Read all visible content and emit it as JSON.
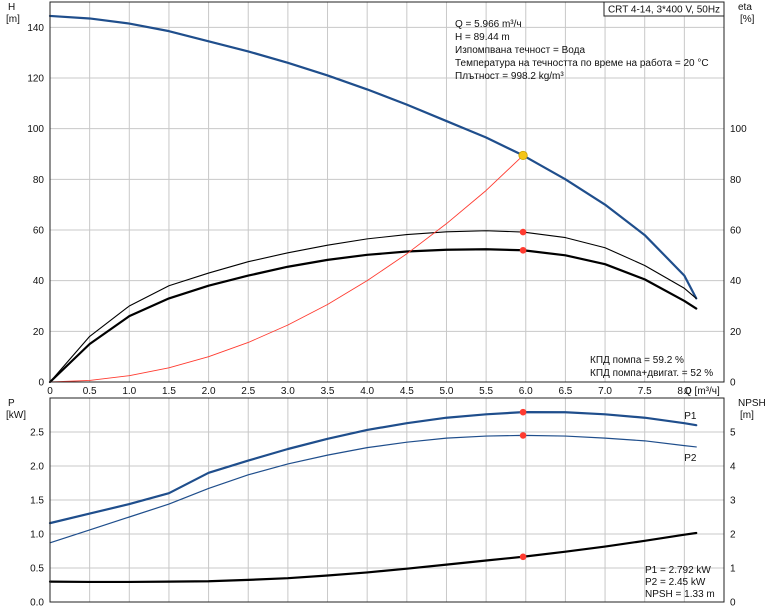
{
  "title": "CRT 4-14, 3*400 V, 50Hz",
  "info": [
    "Q = 5.966 m³/ч",
    "H = 89.44 m",
    "Изпомпвана течност = Вода",
    "Температура на течността по време на работа = 20 °C",
    "Плътност = 998.2 kg/m³"
  ],
  "efficiency_info": [
    "КПД помпа = 59.2 %",
    "КПД помпа+двигат. = 52 %"
  ],
  "power_info": [
    "P1 = 2.792 kW",
    "P2 = 2.45 kW",
    "NPSH = 1.33 m"
  ],
  "colors": {
    "blue": "#1f4e8c",
    "black": "#000000",
    "red": "#ff3b30",
    "duty": "#f5c518",
    "grid": "#c8c8c8"
  },
  "chart_data": [
    {
      "type": "line",
      "panel": "head-efficiency",
      "xlabel": "Q [m³/ч]",
      "xlim": [
        0,
        8.5
      ],
      "x_ticks": [
        "0",
        "0.5",
        "1.0",
        "1.5",
        "2.0",
        "2.5",
        "3.0",
        "3.5",
        "4.0",
        "4.5",
        "5.0",
        "5.5",
        "6.0",
        "6.5",
        "7.0",
        "7.5",
        "8.0"
      ],
      "ylabel_left": [
        "H",
        "[m]"
      ],
      "ylim_left": [
        0,
        150
      ],
      "y_ticks_left": [
        "0",
        "20",
        "40",
        "60",
        "80",
        "100",
        "120",
        "140"
      ],
      "ylabel_right": [
        "eta",
        "[%]"
      ],
      "ylim_right": [
        0,
        150
      ],
      "y_ticks_right": [
        "0",
        "20",
        "40",
        "60",
        "80",
        "100"
      ],
      "grid": true,
      "series": [
        {
          "axis": "left",
          "style": "blue",
          "points": [
            [
              0,
              144.5
            ],
            [
              0.5,
              143.5
            ],
            [
              1,
              141.5
            ],
            [
              1.5,
              138.5
            ],
            [
              2,
              134.5
            ],
            [
              2.5,
              130.5
            ],
            [
              3,
              126
            ],
            [
              3.5,
              121
            ],
            [
              4,
              115.5
            ],
            [
              4.5,
              109.5
            ],
            [
              5,
              103
            ],
            [
              5.5,
              96.5
            ],
            [
              5.966,
              89.44
            ],
            [
              6.5,
              80
            ],
            [
              7,
              70
            ],
            [
              7.5,
              58
            ],
            [
              8,
              42
            ],
            [
              8.15,
              33
            ]
          ]
        },
        {
          "axis": "right",
          "style": "black-thin",
          "points": [
            [
              0,
              0
            ],
            [
              0.5,
              18
            ],
            [
              1,
              30
            ],
            [
              1.5,
              38
            ],
            [
              2,
              43
            ],
            [
              2.5,
              47.5
            ],
            [
              3,
              51
            ],
            [
              3.5,
              54
            ],
            [
              4,
              56.5
            ],
            [
              4.5,
              58.2
            ],
            [
              5,
              59.3
            ],
            [
              5.5,
              59.7
            ],
            [
              5.966,
              59.2
            ],
            [
              6.5,
              57
            ],
            [
              7,
              53
            ],
            [
              7.5,
              46
            ],
            [
              8,
              37
            ],
            [
              8.15,
              33
            ]
          ]
        },
        {
          "axis": "right",
          "style": "black-thick",
          "points": [
            [
              0,
              0
            ],
            [
              0.5,
              15
            ],
            [
              1,
              26
            ],
            [
              1.5,
              33
            ],
            [
              2,
              38
            ],
            [
              2.5,
              42
            ],
            [
              3,
              45.5
            ],
            [
              3.5,
              48.2
            ],
            [
              4,
              50.2
            ],
            [
              4.5,
              51.5
            ],
            [
              5,
              52.2
            ],
            [
              5.5,
              52.4
            ],
            [
              5.966,
              52
            ],
            [
              6.5,
              50
            ],
            [
              7,
              46.5
            ],
            [
              7.5,
              40.5
            ],
            [
              8,
              32
            ],
            [
              8.15,
              29
            ]
          ]
        },
        {
          "axis": "left",
          "style": "red-system",
          "points": [
            [
              0,
              0
            ],
            [
              0.5,
              0.6
            ],
            [
              1,
              2.5
            ],
            [
              1.5,
              5.6
            ],
            [
              2,
              10
            ],
            [
              2.5,
              15.6
            ],
            [
              3,
              22.5
            ],
            [
              3.5,
              30.6
            ],
            [
              4,
              40
            ],
            [
              4.5,
              50.6
            ],
            [
              5,
              62.5
            ],
            [
              5.5,
              75.6
            ],
            [
              5.966,
              89.44
            ]
          ]
        }
      ],
      "markers": [
        {
          "axis": "left",
          "x": 5.966,
          "y": 89.44,
          "kind": "duty"
        },
        {
          "axis": "right",
          "x": 5.966,
          "y": 59.2,
          "kind": "point"
        },
        {
          "axis": "right",
          "x": 5.966,
          "y": 52,
          "kind": "point"
        }
      ]
    },
    {
      "type": "line",
      "panel": "power-npsh",
      "xlim": [
        0,
        8.5
      ],
      "ylabel_left": [
        "P",
        "[kW]"
      ],
      "ylim_left": [
        0,
        3.0
      ],
      "y_ticks_left": [
        "0.0",
        "0.5",
        "1.0",
        "1.5",
        "2.0",
        "2.5"
      ],
      "ylabel_right": [
        "NPSH",
        "[m]"
      ],
      "ylim_right": [
        0,
        6.0
      ],
      "y_ticks_right": [
        "0",
        "1",
        "2",
        "3",
        "4",
        "5"
      ],
      "grid": true,
      "series": [
        {
          "name": "P1",
          "axis": "left",
          "style": "blue-thick",
          "points": [
            [
              0,
              1.16
            ],
            [
              0.5,
              1.3
            ],
            [
              1,
              1.44
            ],
            [
              1.5,
              1.6
            ],
            [
              2,
              1.9
            ],
            [
              2.5,
              2.08
            ],
            [
              3,
              2.25
            ],
            [
              3.5,
              2.4
            ],
            [
              4,
              2.53
            ],
            [
              4.5,
              2.63
            ],
            [
              5,
              2.71
            ],
            [
              5.5,
              2.76
            ],
            [
              5.966,
              2.792
            ],
            [
              6.5,
              2.79
            ],
            [
              7,
              2.76
            ],
            [
              7.5,
              2.71
            ],
            [
              8,
              2.63
            ],
            [
              8.15,
              2.6
            ]
          ]
        },
        {
          "name": "P2",
          "axis": "left",
          "style": "blue-thin",
          "points": [
            [
              0,
              0.87
            ],
            [
              0.5,
              1.06
            ],
            [
              1,
              1.25
            ],
            [
              1.5,
              1.44
            ],
            [
              2,
              1.67
            ],
            [
              2.5,
              1.87
            ],
            [
              3,
              2.03
            ],
            [
              3.5,
              2.16
            ],
            [
              4,
              2.27
            ],
            [
              4.5,
              2.35
            ],
            [
              5,
              2.41
            ],
            [
              5.5,
              2.44
            ],
            [
              5.966,
              2.45
            ],
            [
              6.5,
              2.44
            ],
            [
              7,
              2.41
            ],
            [
              7.5,
              2.37
            ],
            [
              8,
              2.3
            ],
            [
              8.15,
              2.28
            ]
          ]
        },
        {
          "axis": "right",
          "style": "black-thick",
          "points": [
            [
              0,
              0.6
            ],
            [
              0.5,
              0.59
            ],
            [
              1,
              0.59
            ],
            [
              1.5,
              0.6
            ],
            [
              2,
              0.61
            ],
            [
              2.5,
              0.65
            ],
            [
              3,
              0.7
            ],
            [
              3.5,
              0.78
            ],
            [
              4,
              0.87
            ],
            [
              4.5,
              0.98
            ],
            [
              5,
              1.1
            ],
            [
              5.5,
              1.22
            ],
            [
              5.966,
              1.33
            ],
            [
              6.5,
              1.48
            ],
            [
              7,
              1.63
            ],
            [
              7.5,
              1.8
            ],
            [
              8,
              1.98
            ],
            [
              8.15,
              2.03
            ]
          ]
        }
      ],
      "markers": [
        {
          "axis": "left",
          "x": 5.966,
          "y": 2.792,
          "kind": "point"
        },
        {
          "axis": "left",
          "x": 5.966,
          "y": 2.45,
          "kind": "point"
        },
        {
          "axis": "right",
          "x": 5.966,
          "y": 1.33,
          "kind": "point"
        }
      ]
    }
  ]
}
